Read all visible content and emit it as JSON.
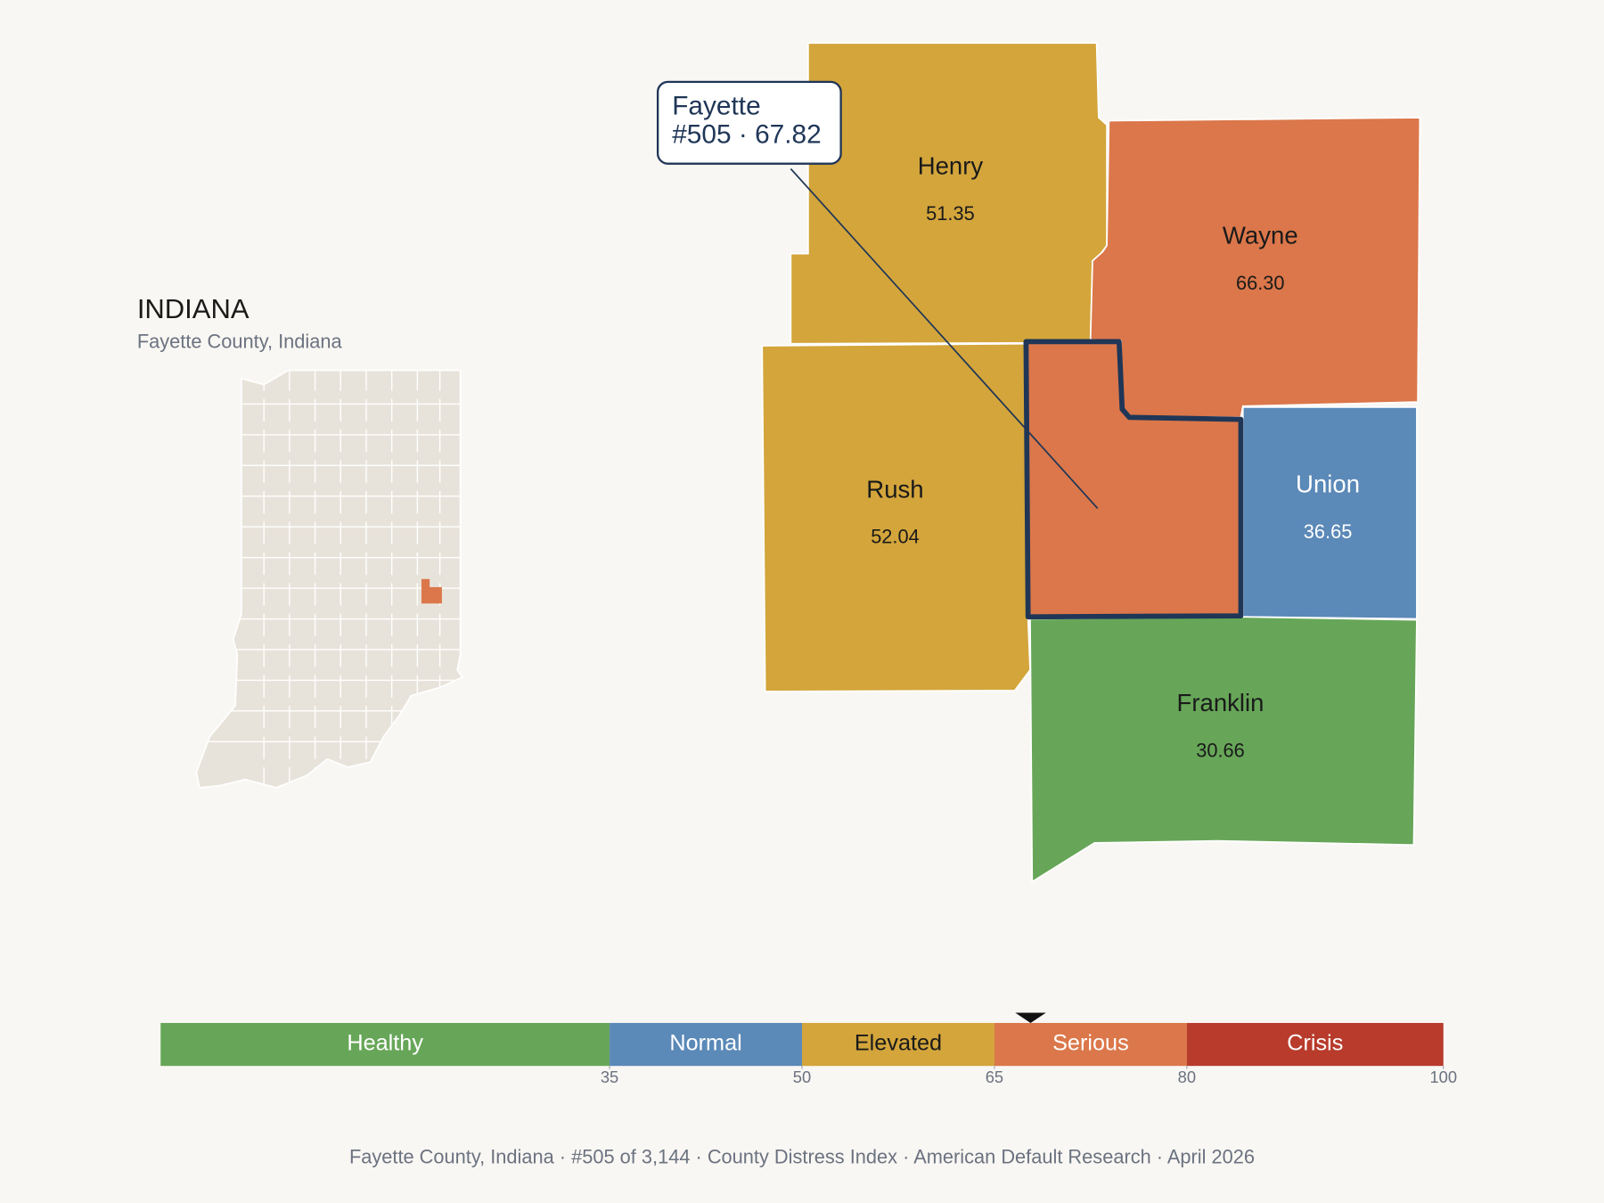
{
  "inset": {
    "title": "INDIANA",
    "subtitle": "Fayette County, Indiana"
  },
  "map": {
    "counties": [
      {
        "name": "Henry",
        "score": 51.35,
        "score_label": "51.35"
      },
      {
        "name": "Wayne",
        "score": 66.3,
        "score_label": "66.30"
      },
      {
        "name": "Rush",
        "score": 52.04,
        "score_label": "52.04"
      },
      {
        "name": "Union",
        "score": 36.65,
        "score_label": "36.65"
      },
      {
        "name": "Franklin",
        "score": 30.66,
        "score_label": "30.66"
      }
    ],
    "selected": {
      "name": "Fayette",
      "score": 67.82,
      "callout_line2": "#505 · 67.82"
    }
  },
  "scale": {
    "range": [
      0,
      100
    ],
    "ticks": [
      35,
      50,
      65,
      80,
      100
    ],
    "bands": [
      {
        "label": "Healthy",
        "color": "#67a658"
      },
      {
        "label": "Normal",
        "color": "#5b89b8"
      },
      {
        "label": "Elevated",
        "color": "#d3a53b"
      },
      {
        "label": "Serious",
        "color": "#db774a"
      },
      {
        "label": "Crisis",
        "color": "#b83b2c"
      }
    ]
  },
  "footer": "Fayette County, Indiana  ·  #505 of 3,144  ·  County Distress Index  ·  American Default Research  ·  April 2026"
}
